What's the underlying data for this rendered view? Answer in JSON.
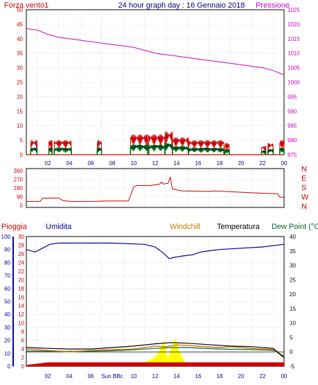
{
  "title": "24 hour graph day : 16 Gennaio 2018",
  "colors": {
    "wind": "#cc0000",
    "gust": "#000080",
    "avg": "#007000",
    "pressure": "#cc00cc",
    "rain": "#cc0000",
    "humidity": "#000099",
    "windchill": "#cc7700",
    "temperature": "#000000",
    "dewpoint": "#006633",
    "solar": "#ffff00",
    "grid": "#c0c0c0"
  },
  "x_ticks": [
    "02",
    "04",
    "06",
    "08",
    "10",
    "12",
    "14",
    "16",
    "18",
    "20",
    "22",
    "00"
  ],
  "x_special": "Sun BBc",
  "chart_data": [
    {
      "type": "line",
      "legend_left": "Forza vento1",
      "legend_right": "Pressione",
      "y_left_ticks": [
        "0",
        "5",
        "10",
        "15",
        "20",
        "25",
        "30",
        "35",
        "40",
        "45",
        "50"
      ],
      "y_right_ticks": [
        "975",
        "980",
        "985",
        "990",
        "995",
        "1000",
        "1005",
        "1010",
        "1015",
        "1020",
        "1025"
      ],
      "ylim_left": [
        0,
        50
      ],
      "ylim_right": [
        975,
        1025
      ],
      "series": [
        {
          "key": "pressure",
          "axis": "right",
          "points": [
            [
              0,
              1018.5
            ],
            [
              1,
              1018.0
            ],
            [
              2,
              1016.5
            ],
            [
              3,
              1015.5
            ],
            [
              4,
              1015.0
            ],
            [
              5,
              1014.5
            ],
            [
              6,
              1014.0
            ],
            [
              7,
              1013.5
            ],
            [
              8,
              1013.0
            ],
            [
              9,
              1012.5
            ],
            [
              10,
              1012.0
            ],
            [
              11,
              1011.0
            ],
            [
              12,
              1010.0
            ],
            [
              13,
              1009.5
            ],
            [
              14,
              1009.0
            ],
            [
              15,
              1008.5
            ],
            [
              16,
              1008.0
            ],
            [
              17,
              1007.5
            ],
            [
              18,
              1007.0
            ],
            [
              19,
              1006.5
            ],
            [
              20,
              1006.0
            ],
            [
              21,
              1005.5
            ],
            [
              22,
              1005.0
            ],
            [
              23,
              1004.0
            ],
            [
              24,
              1002.5
            ]
          ]
        },
        {
          "key": "wind",
          "axis": "left",
          "bursts": [
            [
              0.4,
              1.0,
              5
            ],
            [
              2.1,
              2.4,
              5
            ],
            [
              2.6,
              4.2,
              5
            ],
            [
              6.6,
              7.0,
              5
            ],
            [
              9.7,
              11.3,
              7
            ],
            [
              11.4,
              12.9,
              7
            ],
            [
              12.9,
              13.6,
              8
            ],
            [
              13.6,
              15.1,
              6
            ],
            [
              15.1,
              18.4,
              5
            ],
            [
              18.5,
              18.9,
              4
            ],
            [
              21.9,
              22.3,
              3
            ],
            [
              22.5,
              23.0,
              4
            ],
            [
              23.6,
              24.0,
              5
            ]
          ]
        }
      ]
    },
    {
      "type": "line",
      "y_left_ticks": [
        "0",
        "90",
        "180",
        "270",
        "360"
      ],
      "y_right_labels": [
        "N",
        "W",
        "S",
        "E",
        "N"
      ],
      "ylim": [
        0,
        360
      ],
      "series": [
        {
          "key": "wind_direction",
          "points": [
            [
              0,
              40
            ],
            [
              1.3,
              40
            ],
            [
              1.5,
              75
            ],
            [
              3.0,
              75
            ],
            [
              3.4,
              50
            ],
            [
              4.2,
              40
            ],
            [
              6.0,
              40
            ],
            [
              7.5,
              45
            ],
            [
              9.5,
              45
            ],
            [
              10.0,
              190
            ],
            [
              10.3,
              205
            ],
            [
              11.5,
              205
            ],
            [
              12.4,
              220
            ],
            [
              12.6,
              240
            ],
            [
              12.8,
              220
            ],
            [
              13.2,
              230
            ],
            [
              13.4,
              290
            ],
            [
              13.6,
              170
            ],
            [
              13.9,
              165
            ],
            [
              14.2,
              155
            ],
            [
              14.6,
              150
            ],
            [
              17.0,
              145
            ],
            [
              17.5,
              150
            ],
            [
              23.0,
              120
            ],
            [
              23.4,
              120
            ],
            [
              23.6,
              85
            ],
            [
              24,
              85
            ]
          ]
        }
      ]
    },
    {
      "type": "line",
      "legend_rain": "Pioggia",
      "legend_humidity": "Umidita",
      "legend_windchill": "Windchill",
      "legend_temperature": "Temperatura",
      "legend_dewpoint": "Dew Point (°C",
      "y_humidity_ticks": [
        "0",
        "10",
        "20",
        "30",
        "40",
        "50",
        "60",
        "70",
        "80",
        "90",
        "100"
      ],
      "y_rain_ticks": [
        "0",
        "2",
        "4",
        "6",
        "8",
        "10",
        "12",
        "14",
        "16",
        "18",
        "20",
        "22",
        "24",
        "26",
        "28",
        "30"
      ],
      "y_temp_ticks": [
        "-5",
        "0",
        "5",
        "10",
        "15",
        "20",
        "25",
        "30",
        "35",
        "40"
      ],
      "ylim_humidity": [
        0,
        100
      ],
      "ylim_temp": [
        -5,
        40
      ],
      "series": [
        {
          "key": "humidity",
          "axis": "humidity",
          "points": [
            [
              0,
              90
            ],
            [
              0.8,
              88
            ],
            [
              1.5,
              91
            ],
            [
              2.2,
              94
            ],
            [
              3.0,
              95
            ],
            [
              5.0,
              95
            ],
            [
              8.0,
              95
            ],
            [
              11.0,
              94
            ],
            [
              12.0,
              92
            ],
            [
              12.8,
              87
            ],
            [
              13.3,
              83
            ],
            [
              13.8,
              84
            ],
            [
              14.5,
              85
            ],
            [
              15.5,
              86
            ],
            [
              16.2,
              88
            ],
            [
              17.0,
              89
            ],
            [
              18.0,
              90
            ],
            [
              20.0,
              91
            ],
            [
              22.0,
              92
            ],
            [
              24,
              94
            ]
          ]
        },
        {
          "key": "temperature",
          "axis": "temp",
          "points": [
            [
              0,
              1.5
            ],
            [
              2,
              1.2
            ],
            [
              4,
              1.0
            ],
            [
              6,
              1.0
            ],
            [
              8,
              1.5
            ],
            [
              10,
              2.0
            ],
            [
              12,
              2.8
            ],
            [
              13.5,
              3.2
            ],
            [
              15,
              3.0
            ],
            [
              17,
              2.5
            ],
            [
              19,
              2.0
            ],
            [
              21,
              1.8
            ],
            [
              23,
              1.2
            ],
            [
              24,
              -2.0
            ]
          ]
        },
        {
          "key": "dewpoint",
          "axis": "temp",
          "points": [
            [
              0,
              0.3
            ],
            [
              3,
              0.2
            ],
            [
              6,
              0.2
            ],
            [
              9,
              0.5
            ],
            [
              12,
              1.2
            ],
            [
              13.5,
              1.5
            ],
            [
              15,
              1.5
            ],
            [
              18,
              1.0
            ],
            [
              21,
              0.8
            ],
            [
              23,
              0.5
            ],
            [
              24,
              -1.5
            ]
          ]
        },
        {
          "key": "windchill",
          "axis": "temp",
          "points": [
            [
              0,
              1.0
            ],
            [
              2,
              0.5
            ],
            [
              4,
              0.0
            ],
            [
              6,
              0.5
            ],
            [
              8,
              0.8
            ],
            [
              10,
              1.0
            ],
            [
              12,
              2.0
            ],
            [
              13,
              1.8
            ],
            [
              14,
              2.4
            ],
            [
              16,
              2.0
            ],
            [
              18,
              1.5
            ],
            [
              19,
              1.8
            ],
            [
              21,
              1.2
            ],
            [
              23,
              0.8
            ],
            [
              24,
              -2.0
            ]
          ]
        },
        {
          "key": "solar",
          "axis": "humidity",
          "points": [
            [
              0,
              0
            ],
            [
              8,
              0
            ],
            [
              10,
              1
            ],
            [
              11,
              3
            ],
            [
              11.8,
              6
            ],
            [
              12.3,
              10
            ],
            [
              12.6,
              16
            ],
            [
              12.8,
              20
            ],
            [
              13.0,
              12
            ],
            [
              13.2,
              6
            ],
            [
              13.6,
              16
            ],
            [
              13.9,
              22
            ],
            [
              14.2,
              12
            ],
            [
              14.8,
              3
            ],
            [
              15.5,
              1
            ],
            [
              17.0,
              0
            ],
            [
              24,
              0
            ]
          ]
        },
        {
          "key": "rain",
          "axis": "humidity",
          "points": [
            [
              0,
              1
            ],
            [
              1,
              2
            ],
            [
              2,
              3
            ],
            [
              24,
              3
            ]
          ]
        }
      ]
    }
  ]
}
